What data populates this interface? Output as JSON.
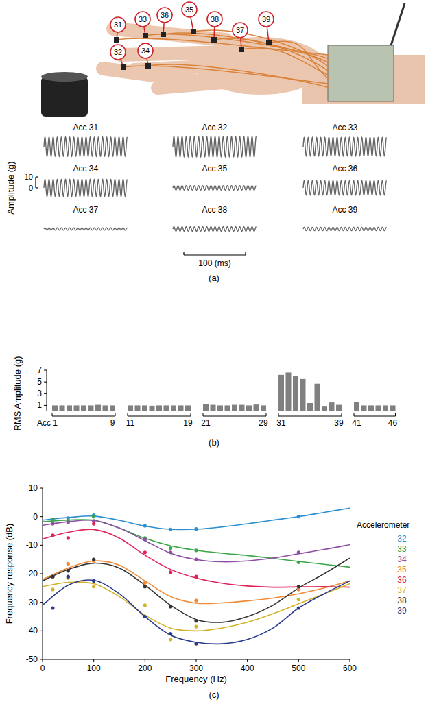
{
  "photo": {
    "labels": [
      "31",
      "33",
      "36",
      "35",
      "38",
      "37",
      "39",
      "32",
      "34"
    ]
  },
  "chart_data": [
    {
      "type": "waveform",
      "panel": "(a)",
      "y_label": "Amplitude (g)",
      "xlim": [
        0,
        135
      ],
      "ylim": [
        -10,
        10
      ],
      "yticks": [
        0,
        10
      ],
      "scale_bar_x": {
        "value": 100,
        "label": "100 (ms)"
      },
      "frequency_hz": 150,
      "color": "#666666",
      "series": [
        {
          "name": "Acc 31",
          "amplitude": 8.8
        },
        {
          "name": "Acc 32",
          "amplitude": 9.3
        },
        {
          "name": "Acc 33",
          "amplitude": 8.5
        },
        {
          "name": "Acc 34",
          "amplitude": 7.8
        },
        {
          "name": "Acc 35",
          "amplitude": 2.0
        },
        {
          "name": "Acc 36",
          "amplitude": 6.6
        },
        {
          "name": "Acc 37",
          "amplitude": 1.1
        },
        {
          "name": "Acc 38",
          "amplitude": 2.1
        },
        {
          "name": "Acc 39",
          "amplitude": 1.6
        }
      ]
    },
    {
      "type": "bar",
      "panel": "(b)",
      "y_label": "RMS Amplitude (g)",
      "ylim": [
        0,
        7
      ],
      "yticks": [
        1,
        3,
        5,
        7
      ],
      "color": "#808080",
      "groups": [
        {
          "categories": [
            "Acc 1",
            null,
            null,
            null,
            null,
            null,
            null,
            null,
            "9"
          ],
          "values": [
            1.0,
            1.0,
            1.0,
            1.0,
            1.0,
            1.0,
            1.1,
            1.0,
            1.0
          ]
        },
        {
          "categories": [
            "11",
            null,
            null,
            null,
            null,
            null,
            null,
            null,
            "19"
          ],
          "values": [
            1.0,
            1.0,
            1.0,
            0.95,
            1.0,
            1.0,
            1.0,
            1.0,
            1.0
          ]
        },
        {
          "categories": [
            "21",
            null,
            null,
            null,
            null,
            null,
            null,
            null,
            "29"
          ],
          "values": [
            1.2,
            1.1,
            1.0,
            1.0,
            1.1,
            1.1,
            1.0,
            1.15,
            1.0
          ]
        },
        {
          "categories": [
            "31",
            null,
            null,
            null,
            null,
            null,
            null,
            null,
            "39"
          ],
          "values": [
            6.2,
            6.6,
            6.0,
            5.5,
            1.4,
            4.7,
            0.8,
            1.5,
            1.1
          ]
        },
        {
          "categories": [
            "41",
            null,
            null,
            null,
            null,
            "46"
          ],
          "values": [
            1.6,
            1.0,
            1.0,
            1.0,
            1.0,
            1.0
          ]
        }
      ]
    },
    {
      "type": "line",
      "panel": "(c)",
      "x_label": "Frequency (Hz)",
      "y_label": "Frequency response (dB)",
      "xlim": [
        0,
        600
      ],
      "xticks": [
        0,
        100,
        200,
        300,
        400,
        500,
        600
      ],
      "ylim": [
        -50,
        10
      ],
      "yticks": [
        -50,
        -40,
        -30,
        -20,
        -10,
        0,
        10
      ],
      "legend_title": "Accelerometer",
      "legend": "right",
      "marker": "circle",
      "series": [
        {
          "name": "32",
          "color": "#2b8fd0",
          "x": [
            20,
            50,
            100,
            200,
            250,
            300,
            500
          ],
          "values": [
            -1,
            -0.5,
            0.5,
            -3.2,
            -4.5,
            -4.3,
            0
          ],
          "fit_x": [
            0,
            50,
            100,
            150,
            200,
            250,
            300,
            350,
            400,
            450,
            500,
            550,
            600
          ],
          "fit_values": [
            -1.2,
            -0.3,
            0.2,
            -1.3,
            -3.3,
            -4.4,
            -4.4,
            -3.6,
            -2.5,
            -1.2,
            0,
            1.5,
            3
          ]
        },
        {
          "name": "33",
          "color": "#3aa64a",
          "x": [
            20,
            50,
            100,
            200,
            250,
            300,
            500
          ],
          "values": [
            -1,
            -1.5,
            0,
            -7.5,
            -11,
            -11.8,
            -16
          ],
          "fit_x": [
            0,
            50,
            100,
            150,
            200,
            250,
            300,
            350,
            400,
            450,
            500,
            550,
            600
          ],
          "fit_values": [
            -1.8,
            -1.2,
            -1.3,
            -4,
            -7.6,
            -10.2,
            -11.8,
            -12.8,
            -13.6,
            -14.6,
            -15.7,
            -16.7,
            -17.7
          ]
        },
        {
          "name": "34",
          "color": "#8d4ea3",
          "x": [
            20,
            50,
            100,
            200,
            250,
            300,
            500
          ],
          "values": [
            -2.5,
            -2,
            -1.5,
            -8,
            -12.5,
            -15,
            -12.5
          ],
          "fit_x": [
            0,
            50,
            100,
            150,
            200,
            250,
            300,
            350,
            400,
            450,
            500,
            550,
            600
          ],
          "fit_values": [
            -3,
            -1.8,
            -1.3,
            -4,
            -8.4,
            -12.8,
            -15,
            -15.8,
            -15.5,
            -14.5,
            -13,
            -11.5,
            -9.8
          ]
        },
        {
          "name": "35",
          "color": "#f28a35",
          "x": [
            20,
            50,
            100,
            200,
            300,
            500
          ],
          "values": [
            -21,
            -16.5,
            -15.5,
            -23.2,
            -29.4,
            -25.5
          ],
          "fit_x": [
            0,
            50,
            100,
            150,
            200,
            250,
            300,
            350,
            400,
            450,
            500,
            550,
            600
          ],
          "fit_values": [
            -22,
            -18,
            -15.5,
            -17,
            -22.5,
            -28,
            -30.3,
            -30.2,
            -29.5,
            -28.5,
            -27,
            -25,
            -22.5
          ]
        },
        {
          "name": "36",
          "color": "#e0245a",
          "x": [
            20,
            50,
            100,
            200,
            250,
            300
          ],
          "values": [
            -6.5,
            -7.5,
            -2.5,
            -12.5,
            -19.5,
            -21
          ],
          "fit_x": [
            0,
            50,
            100,
            150,
            200,
            250,
            300,
            350,
            400,
            450,
            500,
            550,
            600
          ],
          "fit_values": [
            -7.8,
            -5.5,
            -4.5,
            -7.5,
            -13.5,
            -18.5,
            -21.5,
            -23.3,
            -24.3,
            -24.7,
            -24.6,
            -24.5,
            -24.7
          ]
        },
        {
          "name": "37",
          "color": "#d2b328",
          "x": [
            20,
            50,
            100,
            200,
            250,
            300,
            500
          ],
          "values": [
            -25.5,
            -21.5,
            -24.5,
            -31,
            -43,
            -38.5,
            -29
          ],
          "fit_x": [
            0,
            50,
            100,
            150,
            200,
            250,
            300,
            350,
            400,
            450,
            500,
            550,
            600
          ],
          "fit_values": [
            -24.5,
            -23,
            -23.5,
            -28,
            -34.5,
            -39,
            -40,
            -39,
            -37,
            -34,
            -30.5,
            -27,
            -23.5
          ]
        },
        {
          "name": "38",
          "color": "#333333",
          "x": [
            20,
            50,
            100,
            200,
            250,
            300,
            500
          ],
          "values": [
            -21,
            -19,
            -15,
            -24.5,
            -31.5,
            -36.5,
            -24.5
          ],
          "fit_x": [
            0,
            50,
            100,
            150,
            200,
            250,
            300,
            350,
            400,
            450,
            500,
            550,
            600
          ],
          "fit_values": [
            -22.5,
            -18.5,
            -16.3,
            -18,
            -24,
            -31,
            -36,
            -37,
            -35,
            -31,
            -25,
            -20,
            -14.5
          ]
        },
        {
          "name": "39",
          "color": "#2a3a8c",
          "x": [
            20,
            50,
            100,
            200,
            250,
            300,
            500
          ],
          "values": [
            -32,
            -21,
            -22.5,
            -35,
            -41,
            -44.5,
            -32
          ],
          "fit_x": [
            0,
            50,
            100,
            150,
            200,
            250,
            300,
            350,
            400,
            450,
            500,
            550,
            600
          ],
          "fit_values": [
            -31,
            -24,
            -22.3,
            -27,
            -35,
            -41.5,
            -44,
            -44.5,
            -43,
            -39,
            -32,
            -27,
            -22.5
          ]
        }
      ]
    }
  ]
}
